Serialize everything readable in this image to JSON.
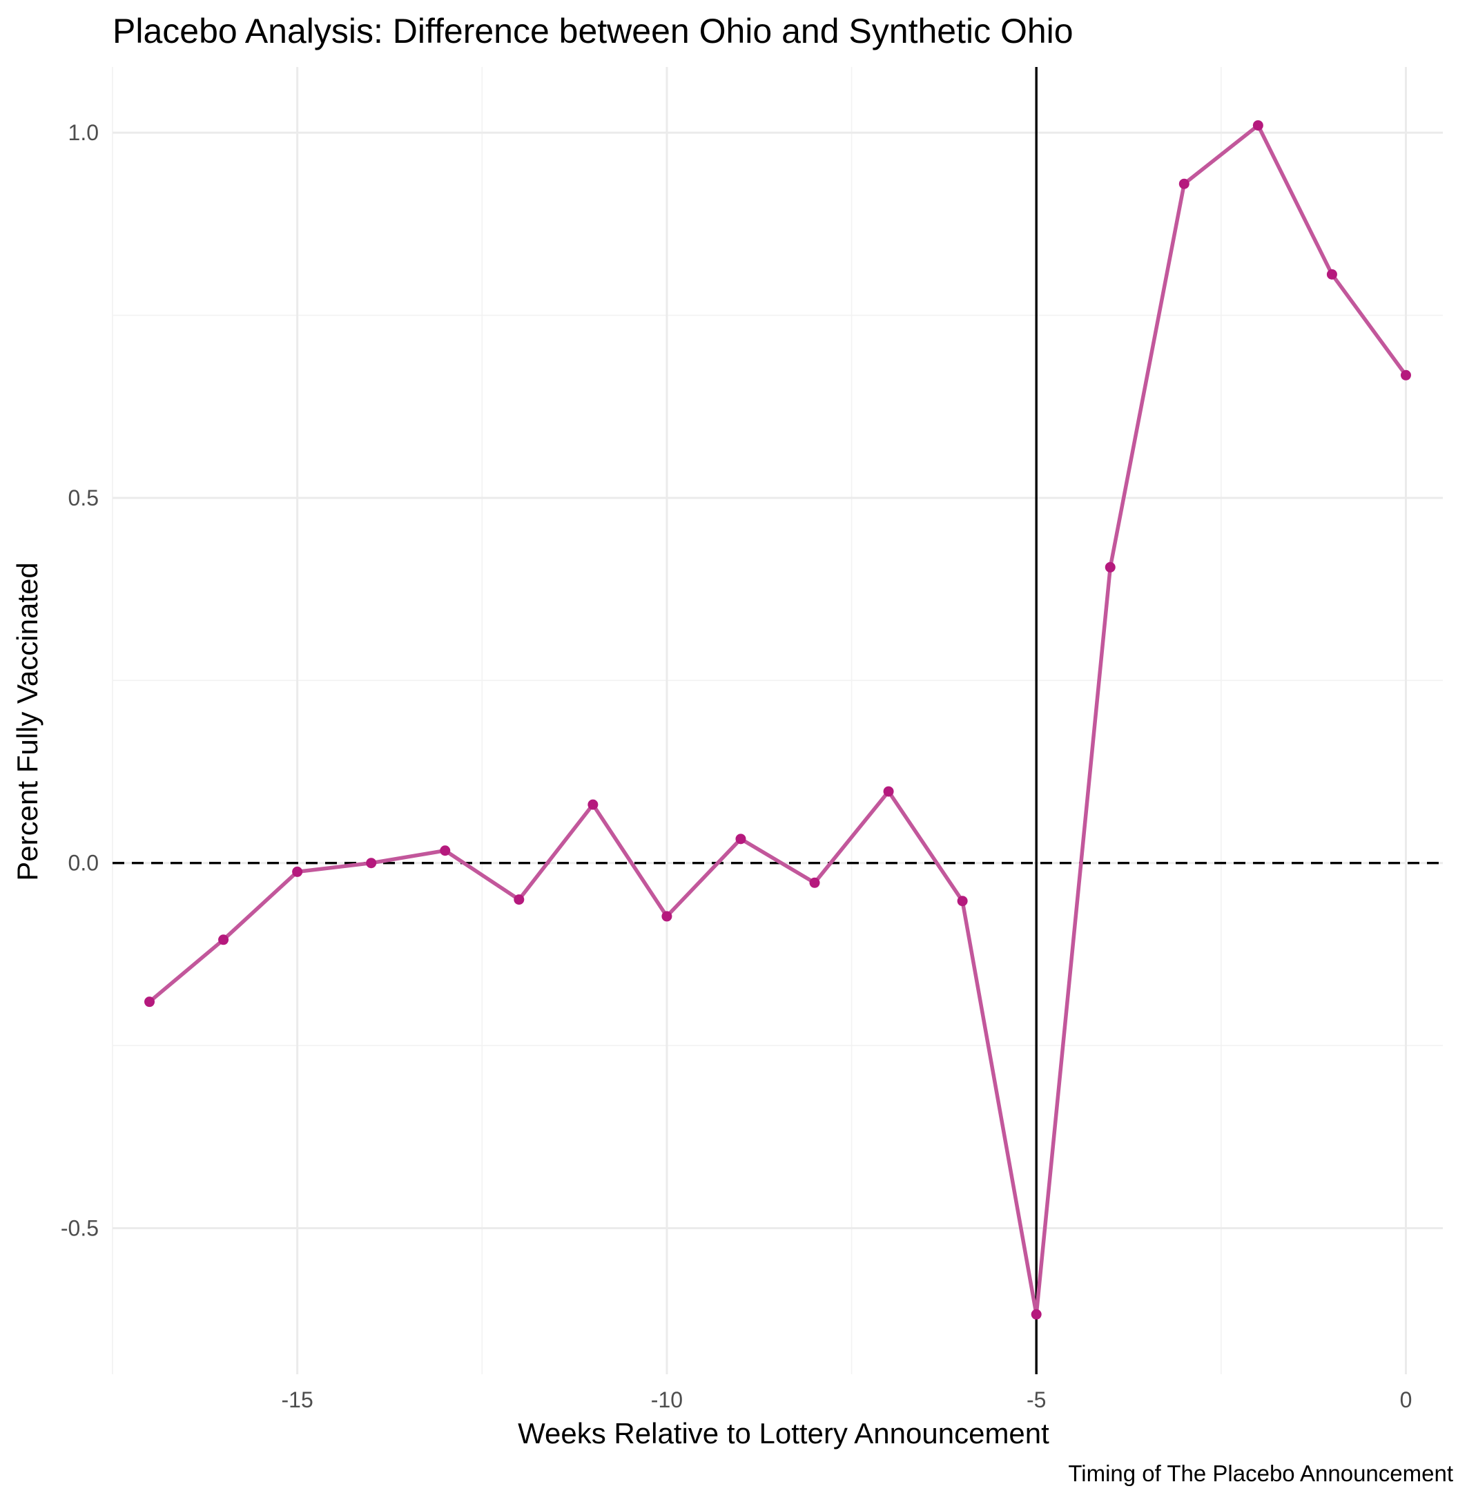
{
  "chart_data": {
    "type": "line",
    "title": "Placebo Analysis:  Difference between Ohio and Synthetic Ohio",
    "xlabel": "Weeks Relative to Lottery Announcement",
    "ylabel": "Percent Fully Vaccinated",
    "caption": "Timing of The Placebo Announcement",
    "xlim": [
      -17.5,
      0.5
    ],
    "ylim": [
      -0.7,
      1.09
    ],
    "x_ticks": [
      -15,
      -10,
      -5,
      0
    ],
    "x_tick_labels": [
      "-15",
      "-10",
      "-5",
      "0"
    ],
    "y_ticks": [
      -0.5,
      0.0,
      0.5,
      1.0
    ],
    "y_tick_labels": [
      "-0.5",
      "0.0",
      "0.5",
      "1.0"
    ],
    "grid": true,
    "reference_lines": {
      "horizontal_dashed_y": 0,
      "vertical_solid_x": -5
    },
    "series": [
      {
        "color": "#c2579b",
        "point_color": "#b5197d",
        "x": [
          -17,
          -16,
          -15,
          -14,
          -13,
          -12,
          -11,
          -10,
          -9,
          -8,
          -7,
          -6,
          -5,
          -4,
          -3,
          -2,
          -1,
          0
        ],
        "y": [
          -0.19,
          -0.105,
          -0.012,
          0.0,
          0.017,
          -0.05,
          0.08,
          -0.073,
          0.033,
          -0.027,
          0.098,
          -0.052,
          -0.618,
          0.405,
          0.93,
          1.01,
          0.806,
          0.668
        ]
      }
    ]
  }
}
